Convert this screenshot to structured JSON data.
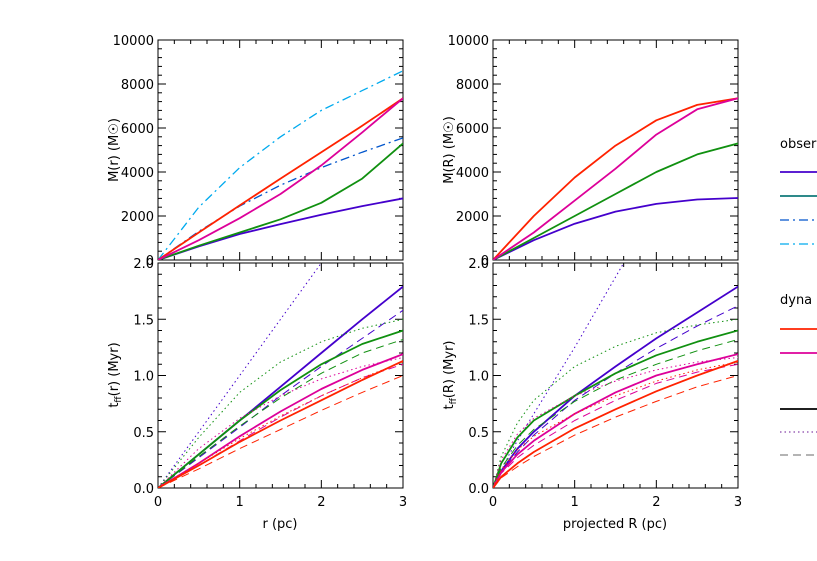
{
  "chart_data": [
    {
      "type": "line",
      "id": "top-left",
      "xlabel": "",
      "ylabel": "M(r) (M☉)",
      "xlim": [
        0,
        3
      ],
      "ylim": [
        0,
        10000
      ],
      "yticks": [
        0,
        2000,
        4000,
        6000,
        8000,
        10000
      ],
      "xticks": [],
      "series": [
        {
          "color": "#4400cc",
          "style": "solid",
          "width": 1.8,
          "x": [
            0,
            0.5,
            1,
            1.5,
            2,
            2.5,
            3
          ],
          "y": [
            0,
            620,
            1180,
            1630,
            2060,
            2450,
            2800
          ]
        },
        {
          "color": "#109010",
          "style": "solid",
          "width": 1.8,
          "x": [
            0,
            0.5,
            1,
            1.5,
            2,
            2.5,
            3
          ],
          "y": [
            0,
            650,
            1250,
            1850,
            2600,
            3700,
            5300
          ]
        },
        {
          "color": "#0055cc",
          "style": "dashdot",
          "width": 1.3,
          "x": [
            0,
            0.5,
            1,
            1.5,
            2,
            2.5,
            3
          ],
          "y": [
            0,
            1300,
            2450,
            3400,
            4200,
            4900,
            5550
          ]
        },
        {
          "color": "#00aaee",
          "style": "dashdot",
          "width": 1.3,
          "x": [
            0,
            0.5,
            1,
            1.5,
            2,
            2.5,
            3
          ],
          "y": [
            0,
            2400,
            4200,
            5600,
            6800,
            7700,
            8600
          ]
        },
        {
          "color": "#ff2200",
          "style": "solid",
          "width": 1.8,
          "x": [
            0,
            0.5,
            1,
            1.5,
            2,
            2.5,
            3
          ],
          "y": [
            0,
            1250,
            2480,
            3700,
            4900,
            6100,
            7350
          ]
        },
        {
          "color": "#dd0099",
          "style": "solid",
          "width": 1.8,
          "x": [
            0,
            0.5,
            1,
            1.5,
            2,
            2.5,
            3
          ],
          "y": [
            0,
            900,
            1900,
            3000,
            4300,
            5800,
            7350
          ]
        }
      ]
    },
    {
      "type": "line",
      "id": "top-right",
      "xlabel": "",
      "ylabel": "M(R) (M☉)",
      "xlim": [
        0,
        3
      ],
      "ylim": [
        0,
        10000
      ],
      "yticks": [
        0,
        2000,
        4000,
        6000,
        8000,
        10000
      ],
      "xticks": [],
      "series": [
        {
          "color": "#4400cc",
          "style": "solid",
          "width": 1.8,
          "x": [
            0,
            0.5,
            1,
            1.5,
            2,
            2.5,
            3
          ],
          "y": [
            0,
            900,
            1650,
            2200,
            2550,
            2750,
            2820
          ]
        },
        {
          "color": "#109010",
          "style": "solid",
          "width": 1.8,
          "x": [
            0,
            0.5,
            1,
            1.5,
            2,
            2.5,
            3
          ],
          "y": [
            0,
            1000,
            2000,
            3000,
            4000,
            4800,
            5300
          ]
        },
        {
          "color": "#ff2200",
          "style": "solid",
          "width": 1.8,
          "x": [
            0,
            0.5,
            1,
            1.5,
            2,
            2.5,
            3
          ],
          "y": [
            0,
            2000,
            3750,
            5200,
            6350,
            7050,
            7350
          ]
        },
        {
          "color": "#dd0099",
          "style": "solid",
          "width": 1.8,
          "x": [
            0,
            0.5,
            1,
            1.5,
            2,
            2.5,
            3
          ],
          "y": [
            0,
            1250,
            2700,
            4150,
            5700,
            6850,
            7350
          ]
        }
      ]
    },
    {
      "type": "line",
      "id": "bottom-left",
      "xlabel": "r (pc)",
      "ylabel": "t_ff(r) (Myr)",
      "xlim": [
        0,
        3
      ],
      "ylim": [
        0,
        2
      ],
      "yticks": [
        0.0,
        0.5,
        1.0,
        1.5,
        2.0
      ],
      "xticks": [
        0,
        1,
        2,
        3
      ],
      "series": [
        {
          "color": "#4400cc",
          "style": "solid",
          "width": 1.8,
          "x": [
            0,
            0.5,
            1,
            1.5,
            2,
            2.5,
            3
          ],
          "y": [
            0,
            0.3,
            0.6,
            0.9,
            1.2,
            1.5,
            1.79
          ]
        },
        {
          "color": "#4400cc",
          "style": "dotted",
          "width": 1.0,
          "x": [
            0,
            0.5,
            1,
            1.5,
            2
          ],
          "y": [
            0,
            0.5,
            1.0,
            1.5,
            2.0
          ]
        },
        {
          "color": "#4400cc",
          "style": "dashed",
          "width": 1.0,
          "x": [
            0,
            0.5,
            1,
            1.5,
            2,
            2.5,
            3
          ],
          "y": [
            0,
            0.27,
            0.54,
            0.82,
            1.08,
            1.33,
            1.58
          ]
        },
        {
          "color": "#109010",
          "style": "solid",
          "width": 1.8,
          "x": [
            0,
            0.5,
            1,
            1.5,
            2,
            2.5,
            3
          ],
          "y": [
            0,
            0.3,
            0.6,
            0.87,
            1.1,
            1.28,
            1.4
          ]
        },
        {
          "color": "#109010",
          "style": "dotted",
          "width": 1.0,
          "x": [
            0,
            0.5,
            1,
            1.5,
            2,
            2.5,
            3
          ],
          "y": [
            0,
            0.45,
            0.85,
            1.12,
            1.3,
            1.42,
            1.5
          ]
        },
        {
          "color": "#109010",
          "style": "dashed",
          "width": 1.0,
          "x": [
            0,
            0.5,
            1,
            1.5,
            2,
            2.5,
            3
          ],
          "y": [
            0,
            0.28,
            0.55,
            0.8,
            1.02,
            1.2,
            1.32
          ]
        },
        {
          "color": "#dd0099",
          "style": "solid",
          "width": 1.8,
          "x": [
            0,
            0.5,
            1,
            1.5,
            2,
            2.5,
            3
          ],
          "y": [
            0,
            0.22,
            0.46,
            0.68,
            0.88,
            1.05,
            1.19
          ]
        },
        {
          "color": "#dd0099",
          "style": "dotted",
          "width": 1.0,
          "x": [
            0,
            0.5,
            1,
            1.5,
            2,
            2.5,
            3
          ],
          "y": [
            0,
            0.35,
            0.62,
            0.82,
            0.97,
            1.08,
            1.16
          ]
        },
        {
          "color": "#dd0099",
          "style": "dashed",
          "width": 1.0,
          "x": [
            0,
            0.5,
            1,
            1.5,
            2,
            2.5,
            3
          ],
          "y": [
            0,
            0.2,
            0.42,
            0.63,
            0.82,
            0.98,
            1.1
          ]
        },
        {
          "color": "#ff2200",
          "style": "solid",
          "width": 1.8,
          "x": [
            0,
            0.5,
            1,
            1.5,
            2,
            2.5,
            3
          ],
          "y": [
            0,
            0.2,
            0.41,
            0.6,
            0.78,
            0.96,
            1.13
          ]
        },
        {
          "color": "#ff2200",
          "style": "dotted",
          "width": 1.0,
          "x": [
            0,
            0.5,
            1,
            1.5,
            2,
            2.5,
            3
          ],
          "y": [
            0,
            0.22,
            0.44,
            0.64,
            0.82,
            0.98,
            1.12
          ]
        },
        {
          "color": "#ff2200",
          "style": "dashed",
          "width": 1.0,
          "x": [
            0,
            0.5,
            1,
            1.5,
            2,
            2.5,
            3
          ],
          "y": [
            0,
            0.17,
            0.35,
            0.52,
            0.69,
            0.85,
            1.0
          ]
        }
      ]
    },
    {
      "type": "line",
      "id": "bottom-right",
      "xlabel": "projected R (pc)",
      "ylabel": "t_ff(R) (Myr)",
      "xlim": [
        0,
        3
      ],
      "ylim": [
        0,
        2
      ],
      "yticks": [
        0.0,
        0.5,
        1.0,
        1.5,
        2.0
      ],
      "xticks": [
        0,
        1,
        2,
        3
      ],
      "series": [
        {
          "color": "#4400cc",
          "style": "solid",
          "width": 1.8,
          "x": [
            0,
            0.1,
            0.3,
            0.5,
            1,
            1.5,
            2,
            2.5,
            3
          ],
          "y": [
            0,
            0.15,
            0.35,
            0.5,
            0.82,
            1.08,
            1.33,
            1.56,
            1.79
          ]
        },
        {
          "color": "#4400cc",
          "style": "dotted",
          "width": 1.0,
          "x": [
            0,
            0.2,
            0.5,
            1,
            1.6
          ],
          "y": [
            0,
            0.3,
            0.66,
            1.25,
            2.0
          ]
        },
        {
          "color": "#4400cc",
          "style": "dashed",
          "width": 1.0,
          "x": [
            0,
            0.1,
            0.3,
            0.5,
            1,
            1.5,
            2,
            2.5,
            3
          ],
          "y": [
            0,
            0.14,
            0.32,
            0.47,
            0.78,
            1.02,
            1.24,
            1.44,
            1.62
          ]
        },
        {
          "color": "#109010",
          "style": "solid",
          "width": 1.8,
          "x": [
            0,
            0.1,
            0.3,
            0.5,
            1,
            1.5,
            2,
            2.5,
            3
          ],
          "y": [
            0,
            0.22,
            0.45,
            0.6,
            0.82,
            1.02,
            1.18,
            1.3,
            1.4
          ]
        },
        {
          "color": "#109010",
          "style": "dotted",
          "width": 1.0,
          "x": [
            0,
            0.1,
            0.3,
            0.5,
            1,
            1.5,
            2,
            2.5,
            3
          ],
          "y": [
            0,
            0.28,
            0.58,
            0.78,
            1.08,
            1.26,
            1.38,
            1.45,
            1.5
          ]
        },
        {
          "color": "#109010",
          "style": "dashed",
          "width": 1.0,
          "x": [
            0,
            0.1,
            0.3,
            0.5,
            1,
            1.5,
            2,
            2.5,
            3
          ],
          "y": [
            0,
            0.18,
            0.38,
            0.52,
            0.77,
            0.96,
            1.1,
            1.22,
            1.32
          ]
        },
        {
          "color": "#dd0099",
          "style": "solid",
          "width": 1.8,
          "x": [
            0,
            0.1,
            0.3,
            0.5,
            1,
            1.5,
            2,
            2.5,
            3
          ],
          "y": [
            0,
            0.14,
            0.3,
            0.42,
            0.66,
            0.85,
            1.0,
            1.1,
            1.19
          ]
        },
        {
          "color": "#dd0099",
          "style": "dotted",
          "width": 1.0,
          "x": [
            0,
            0.1,
            0.3,
            0.5,
            1,
            1.5,
            2,
            2.5,
            3
          ],
          "y": [
            0,
            0.25,
            0.48,
            0.62,
            0.82,
            0.95,
            1.05,
            1.12,
            1.16
          ]
        },
        {
          "color": "#dd0099",
          "style": "dashed",
          "width": 1.0,
          "x": [
            0,
            0.1,
            0.3,
            0.5,
            1,
            1.5,
            2,
            2.5,
            3
          ],
          "y": [
            0,
            0.13,
            0.27,
            0.38,
            0.6,
            0.78,
            0.93,
            1.03,
            1.1
          ]
        },
        {
          "color": "#ff2200",
          "style": "solid",
          "width": 1.8,
          "x": [
            0,
            0.1,
            0.3,
            0.5,
            1,
            1.5,
            2,
            2.5,
            3
          ],
          "y": [
            0,
            0.1,
            0.22,
            0.32,
            0.53,
            0.7,
            0.86,
            1.0,
            1.13
          ]
        },
        {
          "color": "#ff2200",
          "style": "dotted",
          "width": 1.0,
          "x": [
            0,
            0.1,
            0.3,
            0.5,
            1,
            1.5,
            2,
            2.5,
            3
          ],
          "y": [
            0,
            0.16,
            0.34,
            0.46,
            0.66,
            0.82,
            0.95,
            1.05,
            1.12
          ]
        },
        {
          "color": "#ff2200",
          "style": "dashed",
          "width": 1.0,
          "x": [
            0,
            0.1,
            0.3,
            0.5,
            1,
            1.5,
            2,
            2.5,
            3
          ],
          "y": [
            0,
            0.09,
            0.19,
            0.28,
            0.47,
            0.63,
            0.77,
            0.9,
            1.0
          ]
        }
      ]
    }
  ],
  "legend": {
    "observed_label": "obser",
    "dynamical_label": "dyna",
    "observed_items": [
      {
        "color": "#4400cc",
        "style": "solid"
      },
      {
        "color": "#107a7a",
        "style": "solid"
      },
      {
        "color": "#0055cc",
        "style": "dashdot"
      },
      {
        "color": "#00aaee",
        "style": "dashdot"
      }
    ],
    "dynamical_items": [
      {
        "color": "#ff2200",
        "style": "solid"
      },
      {
        "color": "#dd0099",
        "style": "solid"
      }
    ],
    "line_style_items": [
      {
        "color": "#000000",
        "style": "solid"
      },
      {
        "color": "#8844aa",
        "style": "dotted"
      },
      {
        "color": "#888888",
        "style": "dashed"
      }
    ]
  }
}
